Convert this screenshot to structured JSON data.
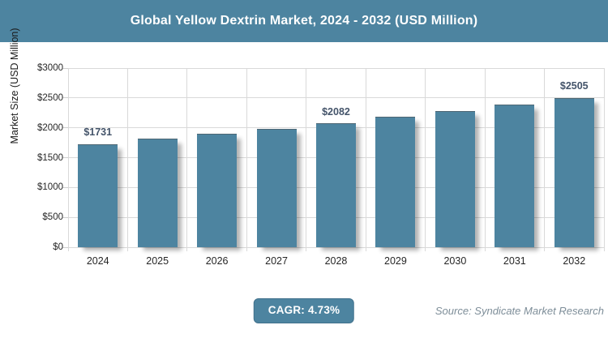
{
  "header": {
    "title": "Global Yellow Dextrin Market, 2024 - 2032 (USD Million)"
  },
  "chart_data": {
    "type": "bar",
    "title": "Global Yellow Dextrin Market, 2024 - 2032 (USD Million)",
    "categories": [
      "2024",
      "2025",
      "2026",
      "2027",
      "2028",
      "2029",
      "2030",
      "2031",
      "2032"
    ],
    "values": [
      1731,
      1813,
      1899,
      1988,
      2082,
      2181,
      2284,
      2392,
      2505
    ],
    "data_labels": [
      "$1731",
      "",
      "",
      "",
      "$2082",
      "",
      "",
      "",
      "$2505"
    ],
    "xlabel": "",
    "ylabel": "Market Size (USD Million)",
    "ylim": [
      0,
      3000
    ],
    "ytick_step": 500,
    "ytick_labels": [
      "$0",
      "$500",
      "$1000",
      "$1500",
      "$2000",
      "$2500",
      "$3000"
    ],
    "grid": true,
    "legend": false,
    "colors": {
      "bar": "#4d84a0",
      "data_label": "#44546a",
      "gridline": "#d9d9d9",
      "tick_text": "#262626",
      "accent": "#4d84a0"
    }
  },
  "footer": {
    "cagr_label": "CAGR: 4.73%",
    "source": "Source: Syndicate Market Research"
  }
}
